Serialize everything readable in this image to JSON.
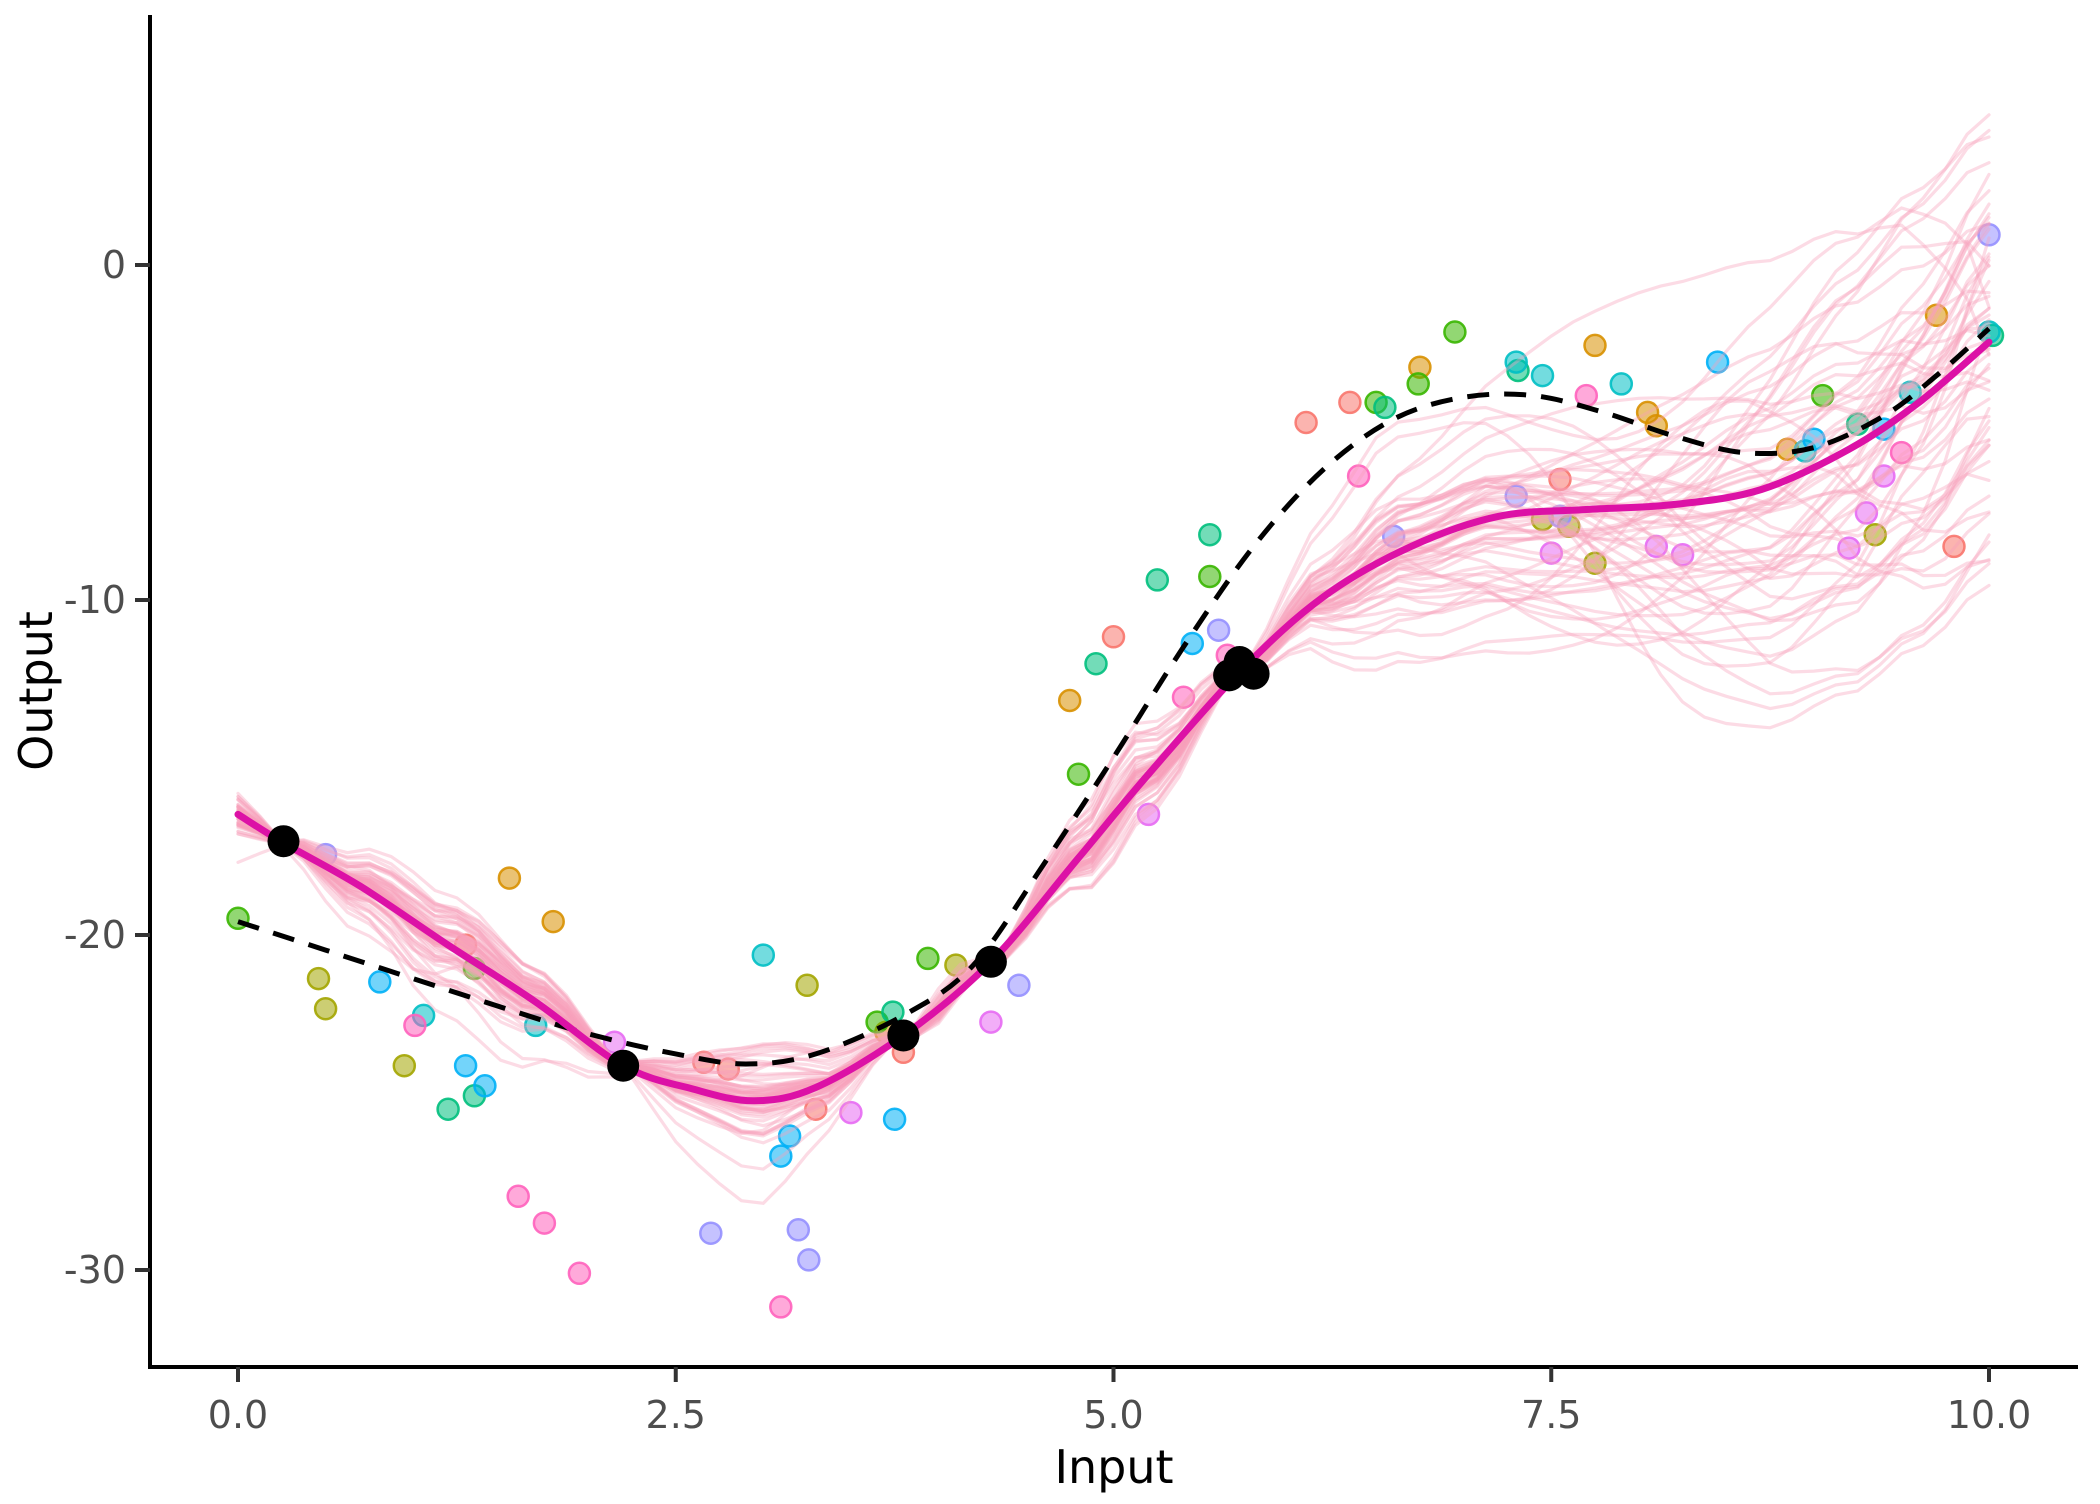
{
  "chart_data": {
    "type": "line",
    "title": "",
    "xlabel": "Input",
    "ylabel": "Output",
    "xlim": [
      -0.5,
      10.5
    ],
    "ylim": [
      -32.9,
      7.5
    ],
    "grid": false,
    "legend": "none",
    "x_ticks": [
      {
        "label": "0.0",
        "value": 0.0
      },
      {
        "label": "2.5",
        "value": 2.5
      },
      {
        "label": "5.0",
        "value": 5.0
      },
      {
        "label": "7.5",
        "value": 7.5
      },
      {
        "label": "10.0",
        "value": 10.0
      }
    ],
    "y_ticks": [
      {
        "label": "0",
        "value": 0
      },
      {
        "label": "-10",
        "value": -10
      },
      {
        "label": "-20",
        "value": -20
      },
      {
        "label": "-30",
        "value": -30
      }
    ],
    "posterior_samples": {
      "description": "bundle of light pink posterior draw curves pinched at observation points, fanning out for x>6",
      "count": 60,
      "color": "#F7A0BB",
      "alpha": 0.38,
      "pinch_x": [
        0.26,
        2.2,
        3.8,
        4.3,
        5.73
      ]
    },
    "mean_curve": {
      "name": "posterior-mean",
      "color": "#DC11A6",
      "width": 7,
      "points": [
        [
          0,
          -16.4
        ],
        [
          0.26,
          -17.25
        ],
        [
          0.7,
          -18.55
        ],
        [
          1.2,
          -20.3
        ],
        [
          1.7,
          -22.0
        ],
        [
          2.2,
          -23.9
        ],
        [
          2.6,
          -24.6
        ],
        [
          2.95,
          -24.95
        ],
        [
          3.3,
          -24.55
        ],
        [
          3.8,
          -23.0
        ],
        [
          4.3,
          -20.8
        ],
        [
          4.8,
          -17.7
        ],
        [
          5.2,
          -15.2
        ],
        [
          5.73,
          -12.1
        ],
        [
          6.2,
          -9.9
        ],
        [
          6.7,
          -8.4
        ],
        [
          7.2,
          -7.5
        ],
        [
          7.7,
          -7.3
        ],
        [
          8.2,
          -7.15
        ],
        [
          8.7,
          -6.7
        ],
        [
          9.2,
          -5.5
        ],
        [
          9.6,
          -4.1
        ],
        [
          10,
          -2.3
        ]
      ]
    },
    "true_curve": {
      "name": "true-function",
      "color": "#000000",
      "style": "dashed",
      "width": 5,
      "points": [
        [
          0,
          -19.6
        ],
        [
          0.5,
          -20.45
        ],
        [
          1.0,
          -21.3
        ],
        [
          1.5,
          -22.15
        ],
        [
          2.0,
          -22.95
        ],
        [
          2.5,
          -23.55
        ],
        [
          2.9,
          -23.85
        ],
        [
          3.3,
          -23.55
        ],
        [
          3.8,
          -22.4
        ],
        [
          4.2,
          -20.9
        ],
        [
          4.6,
          -17.9
        ],
        [
          5.0,
          -14.7
        ],
        [
          5.4,
          -11.4
        ],
        [
          5.8,
          -8.4
        ],
        [
          6.2,
          -6.1
        ],
        [
          6.6,
          -4.6
        ],
        [
          7.0,
          -3.95
        ],
        [
          7.4,
          -3.9
        ],
        [
          7.8,
          -4.4
        ],
        [
          8.2,
          -5.1
        ],
        [
          8.6,
          -5.6
        ],
        [
          9.0,
          -5.45
        ],
        [
          9.4,
          -4.5
        ],
        [
          9.7,
          -3.3
        ],
        [
          10,
          -1.9
        ]
      ]
    },
    "observations": {
      "name": "observed-points",
      "color": "#000000",
      "radius": 16,
      "points": [
        [
          0.26,
          -17.2
        ],
        [
          2.2,
          -23.9
        ],
        [
          3.8,
          -23.0
        ],
        [
          4.3,
          -20.8
        ],
        [
          5.66,
          -12.25
        ],
        [
          5.72,
          -11.85
        ],
        [
          5.8,
          -12.2
        ]
      ]
    },
    "scatter_groups": [
      {
        "name": "salmon",
        "color": "#F8766D",
        "points": [
          [
            1.3,
            -20.3
          ],
          [
            2.66,
            -23.8
          ],
          [
            2.8,
            -24.0
          ],
          [
            3.3,
            -25.2
          ],
          [
            3.8,
            -23.5
          ],
          [
            5.0,
            -11.1
          ],
          [
            6.1,
            -4.7
          ],
          [
            6.35,
            -4.1
          ],
          [
            7.55,
            -6.4
          ],
          [
            9.8,
            -8.4
          ]
        ]
      },
      {
        "name": "gold",
        "color": "#D89000",
        "points": [
          [
            1.55,
            -18.3
          ],
          [
            1.8,
            -19.6
          ],
          [
            3.7,
            -22.9
          ],
          [
            4.75,
            -13.0
          ],
          [
            6.75,
            -3.05
          ],
          [
            7.75,
            -2.4
          ],
          [
            8.05,
            -4.4
          ],
          [
            8.1,
            -4.8
          ],
          [
            8.85,
            -5.5
          ],
          [
            9.7,
            -1.5
          ]
        ]
      },
      {
        "name": "olive",
        "color": "#A3A500",
        "points": [
          [
            0.46,
            -21.3
          ],
          [
            0.5,
            -22.2
          ],
          [
            0.95,
            -23.9
          ],
          [
            3.25,
            -21.5
          ],
          [
            4.1,
            -20.9
          ],
          [
            7.45,
            -7.6
          ],
          [
            7.6,
            -7.8
          ],
          [
            7.75,
            -8.9
          ],
          [
            9.35,
            -8.05
          ]
        ]
      },
      {
        "name": "green",
        "color": "#39B600",
        "points": [
          [
            0.0,
            -19.5
          ],
          [
            1.35,
            -21.0
          ],
          [
            3.65,
            -22.6
          ],
          [
            3.94,
            -20.7
          ],
          [
            4.8,
            -15.2
          ],
          [
            5.55,
            -9.3
          ],
          [
            6.5,
            -4.1
          ],
          [
            6.74,
            -3.55
          ],
          [
            6.95,
            -2.0
          ],
          [
            9.05,
            -3.9
          ]
        ]
      },
      {
        "name": "emerald",
        "color": "#00BF7D",
        "points": [
          [
            1.2,
            -25.2
          ],
          [
            1.35,
            -24.8
          ],
          [
            3.74,
            -22.3
          ],
          [
            4.9,
            -11.9
          ],
          [
            5.25,
            -9.4
          ],
          [
            5.55,
            -8.05
          ],
          [
            6.55,
            -4.25
          ],
          [
            7.31,
            -3.15
          ],
          [
            9.25,
            -4.75
          ],
          [
            10.02,
            -2.1
          ]
        ]
      },
      {
        "name": "teal",
        "color": "#00BFC4",
        "points": [
          [
            1.06,
            -22.4
          ],
          [
            1.7,
            -22.7
          ],
          [
            3.0,
            -20.6
          ],
          [
            7.3,
            -2.9
          ],
          [
            7.45,
            -3.3
          ],
          [
            7.9,
            -3.55
          ],
          [
            8.95,
            -5.55
          ],
          [
            9.55,
            -3.8
          ],
          [
            10.0,
            -2.0
          ]
        ]
      },
      {
        "name": "blue",
        "color": "#00B0F6",
        "points": [
          [
            0.81,
            -21.4
          ],
          [
            1.3,
            -23.9
          ],
          [
            1.41,
            -24.5
          ],
          [
            3.1,
            -26.6
          ],
          [
            3.15,
            -26.0
          ],
          [
            3.75,
            -25.5
          ],
          [
            5.45,
            -11.3
          ],
          [
            8.45,
            -2.9
          ],
          [
            9.0,
            -5.2
          ],
          [
            9.4,
            -4.9
          ]
        ]
      },
      {
        "name": "periwinkle",
        "color": "#9590FF",
        "points": [
          [
            0.5,
            -17.6
          ],
          [
            2.7,
            -28.9
          ],
          [
            3.2,
            -28.8
          ],
          [
            3.26,
            -29.7
          ],
          [
            4.46,
            -21.5
          ],
          [
            5.6,
            -10.9
          ],
          [
            6.6,
            -8.1
          ],
          [
            7.3,
            -6.9
          ],
          [
            7.55,
            -7.5
          ],
          [
            10.0,
            0.9
          ]
        ]
      },
      {
        "name": "orchid",
        "color": "#E76BF3",
        "points": [
          [
            2.15,
            -23.2
          ],
          [
            3.5,
            -25.3
          ],
          [
            4.3,
            -22.6
          ],
          [
            5.2,
            -16.4
          ],
          [
            7.5,
            -8.6
          ],
          [
            8.1,
            -8.4
          ],
          [
            8.25,
            -8.65
          ],
          [
            9.2,
            -8.45
          ],
          [
            9.3,
            -7.4
          ],
          [
            9.4,
            -6.3
          ]
        ]
      },
      {
        "name": "pink",
        "color": "#FF62BC",
        "points": [
          [
            1.01,
            -22.7
          ],
          [
            1.6,
            -27.8
          ],
          [
            1.75,
            -28.6
          ],
          [
            1.95,
            -30.1
          ],
          [
            3.1,
            -31.1
          ],
          [
            5.4,
            -12.9
          ],
          [
            5.65,
            -11.65
          ],
          [
            6.4,
            -6.3
          ],
          [
            7.7,
            -3.9
          ],
          [
            9.5,
            -5.6
          ]
        ]
      }
    ],
    "axis_style": {
      "axis_color": "#000000",
      "tick_label_color": "#4D4D4D",
      "background": "#FFFFFF"
    }
  }
}
